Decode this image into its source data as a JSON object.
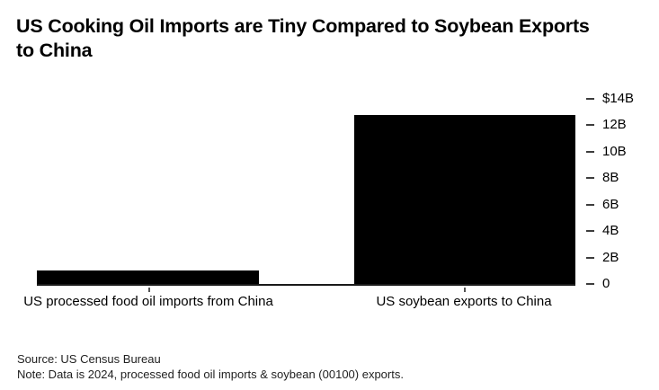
{
  "header": {
    "title_line1": "US Cooking Oil Imports are Tiny Compared to Soybean Exports",
    "title_line2": "to China"
  },
  "footer": {
    "source": "Source: US Census Bureau",
    "note": "Note: Data is 2024, processed food oil imports & soybean (00100) exports."
  },
  "colors": {
    "bar": "#000000",
    "text": "#000000",
    "axis_line": "#1a1a1a",
    "background": "#ffffff"
  },
  "chart_data": {
    "type": "bar",
    "title": "US Cooking Oil Imports are Tiny Compared to Soybean Exports to China",
    "categories": [
      "US processed food oil imports from China",
      "US soybean exports to China"
    ],
    "values": [
      1.0,
      12.8
    ],
    "value_unit": "USD billions",
    "xlabel": "",
    "ylabel": "",
    "ylim": [
      0,
      14
    ],
    "ytick_values": [
      14,
      12,
      10,
      8,
      6,
      4,
      2,
      0
    ],
    "ytick_labels": [
      "$14B",
      "12B",
      "10B",
      "8B",
      "6B",
      "4B",
      "2B",
      "0"
    ],
    "yaxis_position": "right",
    "grid": false,
    "legend": false,
    "bar_color": "#000000",
    "source": "US Census Bureau",
    "note": "Data is 2024, processed food oil imports & soybean (00100) exports."
  }
}
